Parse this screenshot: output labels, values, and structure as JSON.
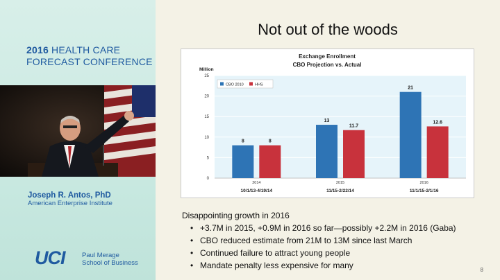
{
  "conference": {
    "year": "2016",
    "line1_rest": " HEALTH CARE",
    "line2": "FORECAST CONFERENCE"
  },
  "speaker": {
    "name": "Joseph R. Antos, PhD",
    "organization": "American Enterprise Institute"
  },
  "school": {
    "logo": "UCI",
    "line1": "Paul Merage",
    "line2": "School of Business"
  },
  "slide": {
    "title": "Not out of the woods",
    "page_number": "8",
    "lead": "Disappointing growth in 2016",
    "bullets": [
      "+3.7M in 2015, +0.9M in 2016 so far—possibly +2.2M in 2016 (Gaba)",
      "CBO reduced estimate from 21M to 13M since last March",
      "Continued failure to attract young people",
      "Mandate penalty less expensive for many"
    ]
  },
  "colors": {
    "cbo": "#2e74b5",
    "hhs": "#c8323c",
    "plot_bg": "#e6f4fa"
  },
  "chart_data": {
    "type": "bar",
    "title": "Exchange Enrollment",
    "subtitle": "CBO Projection vs. Actual",
    "ylabel": "Million",
    "ylim": [
      0,
      25
    ],
    "yticks": [
      0,
      5,
      10,
      15,
      20,
      25
    ],
    "grid": true,
    "legend": "top-left",
    "categories": [
      "2014",
      "2015",
      "2016"
    ],
    "period_labels": [
      "10/1/13-4/19/14",
      "11/15-2/22/14",
      "11/1/15-2/1/16"
    ],
    "series": [
      {
        "name": "CBO 2010",
        "values": [
          8,
          13,
          21
        ],
        "labels": [
          "8",
          "13",
          "21"
        ]
      },
      {
        "name": "HHS",
        "values": [
          8,
          11.7,
          12.6
        ],
        "labels": [
          "8",
          "11.7",
          "12.6"
        ]
      }
    ]
  }
}
